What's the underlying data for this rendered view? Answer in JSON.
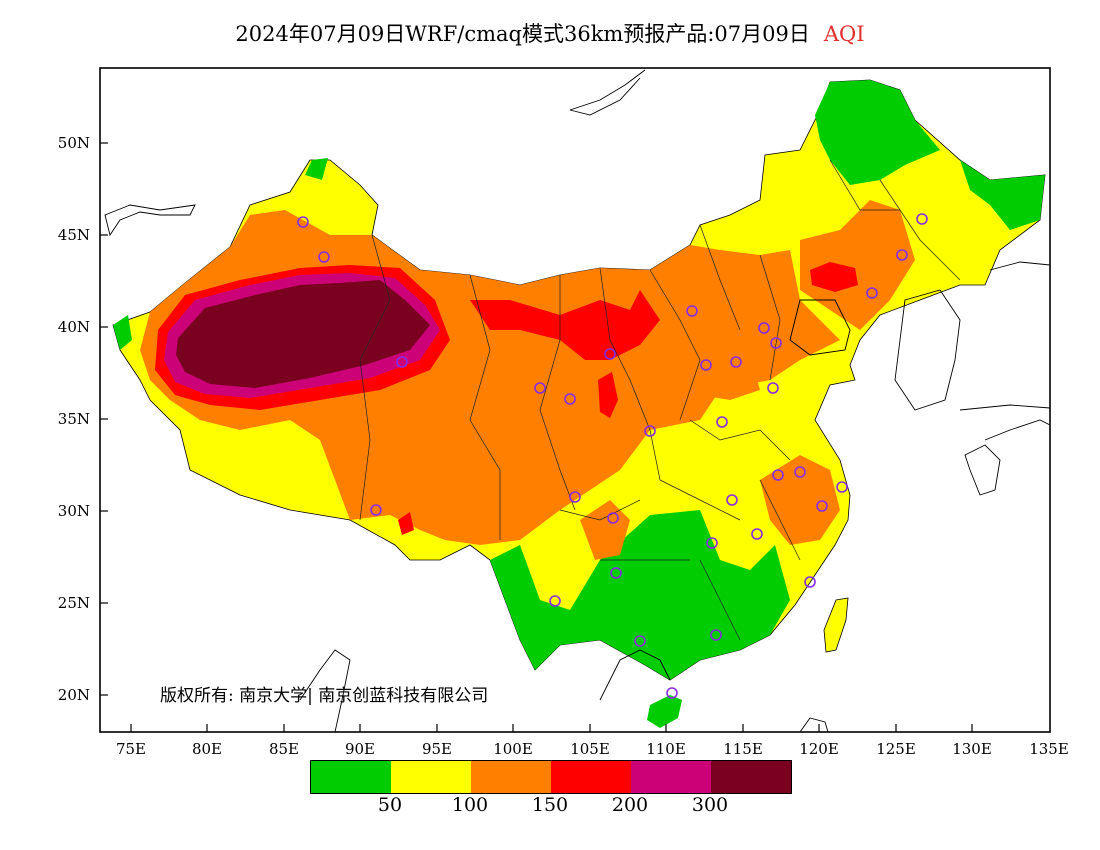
{
  "title": {
    "main": "2024年07月09日WRF/cmaq模式36km预报产品:07月09日",
    "highlight": "AQI"
  },
  "axes": {
    "y_ticks": [
      "50N",
      "45N",
      "40N",
      "35N",
      "30N",
      "25N",
      "20N"
    ],
    "x_ticks": [
      "75E",
      "80E",
      "85E",
      "90E",
      "95E",
      "100E",
      "105E",
      "110E",
      "115E",
      "120E",
      "125E",
      "130E",
      "135E"
    ]
  },
  "copyright": "版权所有: 南京大学| 南京创蓝科技有限公司",
  "legend": {
    "colors": [
      "#00cc00",
      "#ffff00",
      "#ff8000",
      "#ff0000",
      "#cc0077",
      "#7a0020"
    ],
    "labels": [
      "50",
      "100",
      "150",
      "200",
      "300"
    ]
  }
}
